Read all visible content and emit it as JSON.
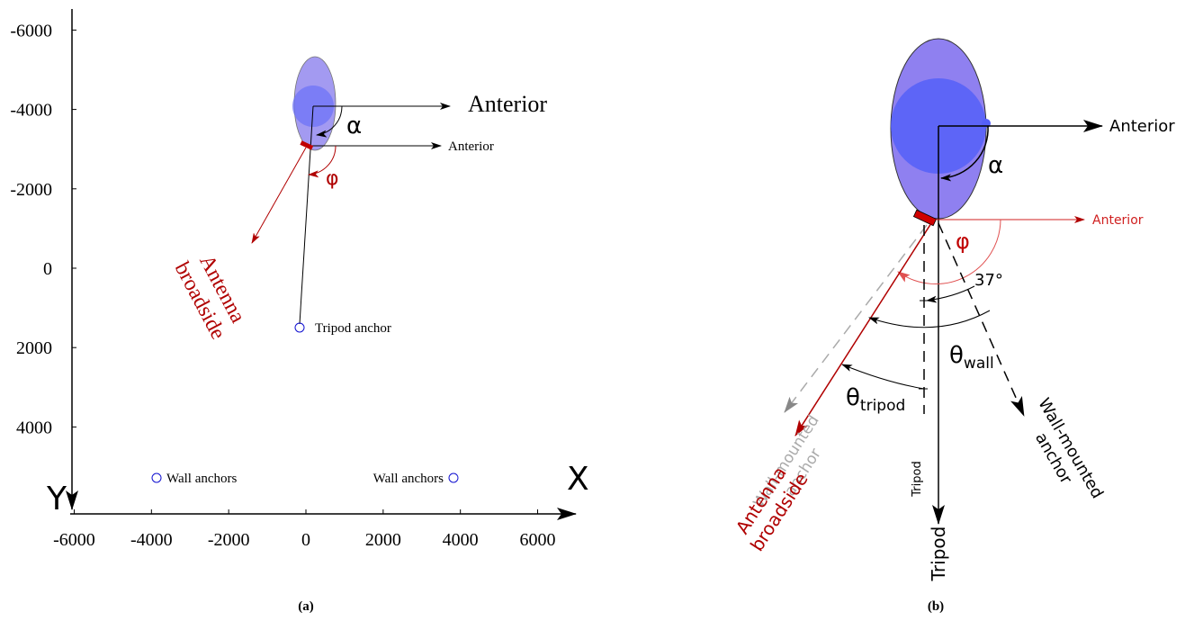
{
  "panel_a": {
    "x_axis_label": "X",
    "y_axis_label": "Y",
    "xticks": [
      -6000,
      -4000,
      -2000,
      0,
      2000,
      4000,
      6000
    ],
    "yticks": [
      -6000,
      -4000,
      -2000,
      0,
      2000,
      4000
    ],
    "anterior_large": "Anterior",
    "alpha": "α",
    "anterior_small": "Anterior",
    "phi": "φ",
    "antenna_line1": "Antenna",
    "antenna_line2": "broadside",
    "tripod_anchor": "Tripod anchor",
    "wall_anchors_left": "Wall anchors",
    "wall_anchors_right": "Wall anchors",
    "caption": "(a)"
  },
  "panel_b": {
    "anterior": "Anterior",
    "alpha": "α",
    "anterior_red": "Anterior",
    "phi": "φ",
    "angle_37": "37°",
    "theta_wall": {
      "symbol": "θ",
      "subscript": "wall"
    },
    "theta_tripod": {
      "symbol": "θ",
      "subscript": "tripod"
    },
    "wall_gray_line1": "Wall-mounted",
    "wall_gray_line2": "anchor",
    "antenna_line1": "Antenna",
    "antenna_line2": "broadside",
    "tripod_small": "Tripod",
    "tripod_large": "Tripod",
    "wall_black_line1": "Wall-mounted",
    "wall_black_line2": "anchor",
    "caption": "(b)"
  }
}
